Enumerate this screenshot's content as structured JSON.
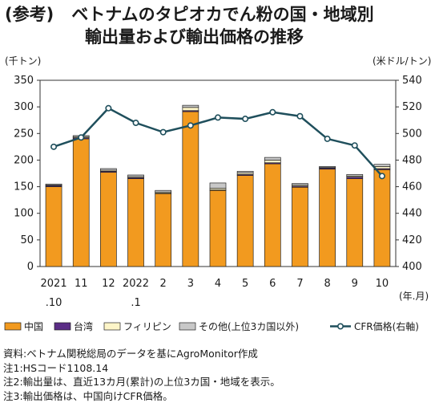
{
  "title": {
    "prefix": "(参考)",
    "line1": "ベトナムのタピオカでん粉の国・地域別",
    "line2": "輸出量および輸出価格の推移"
  },
  "chart_data": {
    "type": "bar",
    "stacked": true,
    "left_axis_unit": "(千トン)",
    "right_axis_unit": "(米ドル/トン)",
    "x_unit": "(年.月)",
    "ylim": [
      0,
      350
    ],
    "yticks": [
      0,
      50,
      100,
      150,
      200,
      250,
      300,
      350
    ],
    "y2lim": [
      400,
      540
    ],
    "y2ticks": [
      400,
      420,
      440,
      460,
      480,
      500,
      520,
      540
    ],
    "categories": [
      {
        "top": "2021",
        "bottom": ".10"
      },
      {
        "top": "11",
        "bottom": ""
      },
      {
        "top": "12",
        "bottom": ""
      },
      {
        "top": "2022",
        "bottom": ".1"
      },
      {
        "top": "2",
        "bottom": ""
      },
      {
        "top": "3",
        "bottom": ""
      },
      {
        "top": "4",
        "bottom": ""
      },
      {
        "top": "5",
        "bottom": ""
      },
      {
        "top": "6",
        "bottom": ""
      },
      {
        "top": "7",
        "bottom": ""
      },
      {
        "top": "8",
        "bottom": ""
      },
      {
        "top": "9",
        "bottom": ""
      },
      {
        "top": "10",
        "bottom": ""
      }
    ],
    "series": [
      {
        "name": "中国",
        "color": "#f29a1f",
        "values": [
          150,
          240,
          177,
          165,
          137,
          291,
          143,
          171,
          193,
          149,
          183,
          165,
          182
        ]
      },
      {
        "name": "台湾",
        "color": "#5b2d86",
        "values": [
          2,
          2,
          2,
          2,
          1,
          2,
          1,
          2,
          2,
          2,
          2,
          3,
          2
        ]
      },
      {
        "name": "フィリピン",
        "color": "#fdf5c8",
        "values": [
          1,
          2,
          2,
          2,
          2,
          6,
          3,
          3,
          5,
          2,
          1,
          2,
          4
        ]
      },
      {
        "name": "その他(上位3カ国以外)",
        "color": "#c8c8c8",
        "values": [
          2,
          2,
          3,
          3,
          3,
          4,
          10,
          3,
          5,
          3,
          2,
          3,
          4
        ]
      }
    ],
    "line": {
      "name": "CFR価格(右軸)",
      "color": "#1f4f5c",
      "values": [
        490,
        497,
        519,
        508,
        501,
        506,
        512,
        511,
        516,
        513,
        496,
        491,
        468
      ]
    }
  },
  "notes": [
    "資料:ベトナム関税総局のデータを基にAgroMonitor作成",
    "注1:HSコード1108.14",
    "注2:輸出量は、直近13カ月(累計)の上位3カ国・地域を表示。",
    "注3:輸出価格は、中国向けCFR価格。"
  ]
}
